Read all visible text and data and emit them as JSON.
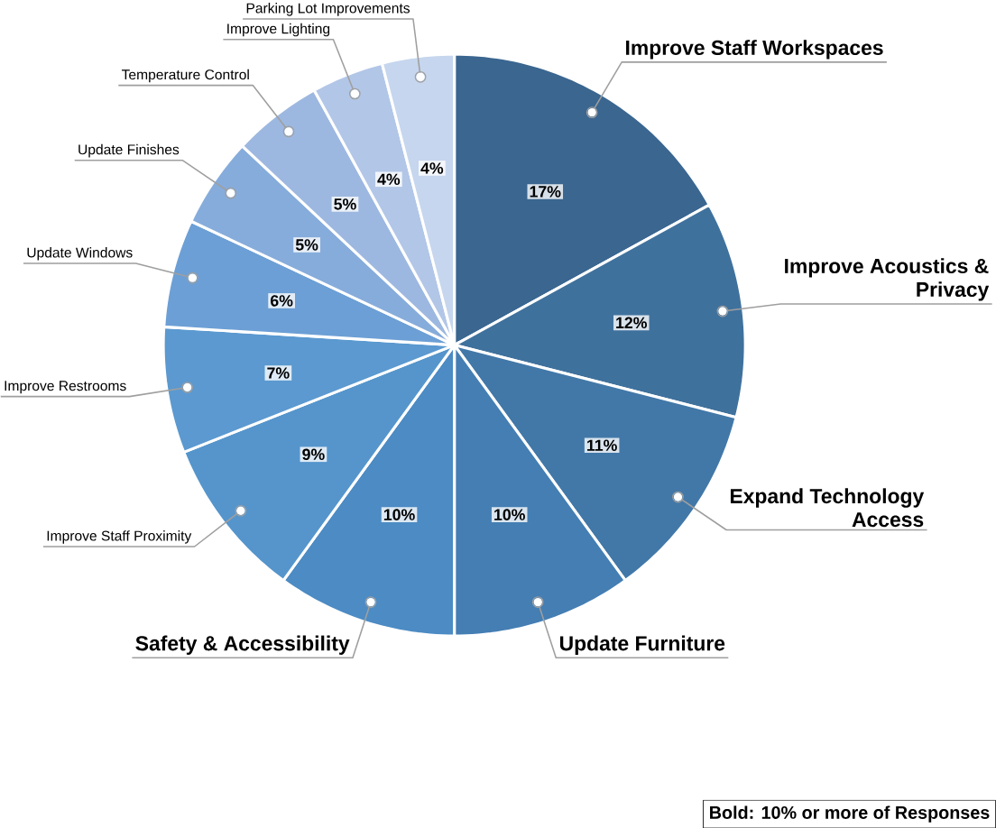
{
  "chart_data": {
    "type": "pie",
    "categories": [
      "Improve Staff Workspaces",
      "Improve Acoustics & Privacy",
      "Expand Technology Access",
      "Update Furniture",
      "Safety & Accessibility",
      "Improve Staff Proximity",
      "Improve Restrooms",
      "Update Windows",
      "Update Finishes",
      "Temperature Control",
      "Improve Lighting",
      "Parking Lot Improvements"
    ],
    "values": [
      17,
      12,
      11,
      10,
      10,
      9,
      7,
      6,
      5,
      5,
      4,
      4
    ],
    "value_labels": [
      "17%",
      "12%",
      "11%",
      "10%",
      "10%",
      "9%",
      "7%",
      "6%",
      "5%",
      "5%",
      "4%",
      "4%"
    ],
    "colors": [
      "#3a6690",
      "#3f719d",
      "#4278a8",
      "#447eb3",
      "#4c8bc4",
      "#5595cc",
      "#5b99d0",
      "#6c9fd5",
      "#86acdb",
      "#9db8e0",
      "#b2c6e7",
      "#c6d6ee"
    ],
    "annotations": [
      "Bold: 10% or more of Responses"
    ]
  }
}
